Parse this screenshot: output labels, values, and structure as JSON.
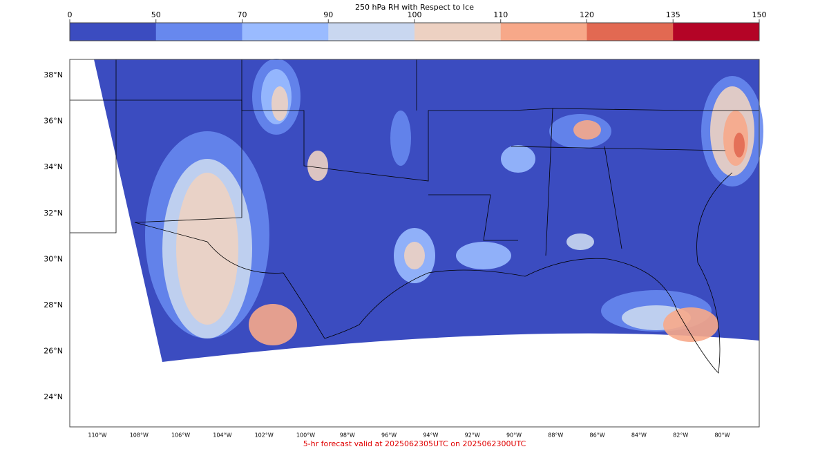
{
  "colorbar": {
    "title": "250 hPa RH with Respect to Ice",
    "bounds": [
      0,
      50,
      70,
      90,
      100,
      110,
      120,
      135,
      150
    ],
    "colors": [
      "#3b4cc0",
      "#6788ee",
      "#9abbff",
      "#c9d7f0",
      "#edd1c2",
      "#f7a889",
      "#e26952",
      "#b40426"
    ]
  },
  "map": {
    "lat_labels": [
      "38°N",
      "36°N",
      "34°N",
      "32°N",
      "30°N",
      "28°N",
      "26°N",
      "24°N"
    ],
    "lon_labels": [
      "110°W",
      "108°W",
      "106°W",
      "104°W",
      "102°W",
      "100°W",
      "98°W",
      "96°W",
      "94°W",
      "92°W",
      "90°W",
      "88°W",
      "86°W",
      "84°W",
      "82°W",
      "80°W"
    ]
  },
  "footer": "5-hr forecast valid at 2025062305UTC on 2025062300UTC"
}
